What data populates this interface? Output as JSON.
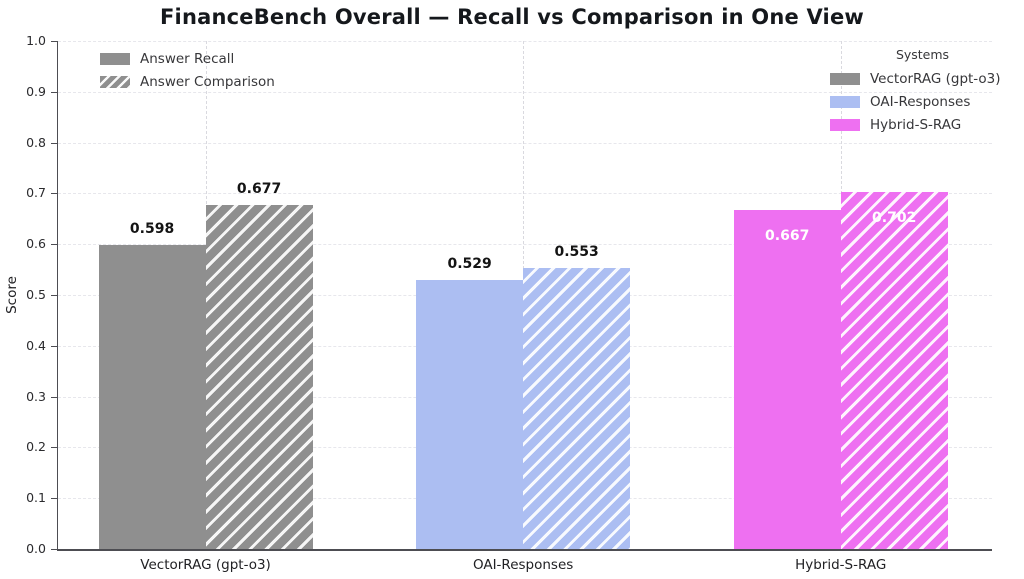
{
  "title": "FinanceBench Overall — Recall vs Comparison in One View",
  "chart_data": {
    "type": "bar",
    "title": "FinanceBench Overall — Recall vs Comparison in One View",
    "xlabel": "",
    "ylabel": "Score",
    "ylim": [
      0.0,
      1.0
    ],
    "yticks": [
      "0.0",
      "0.1",
      "0.2",
      "0.3",
      "0.4",
      "0.5",
      "0.6",
      "0.7",
      "0.8",
      "0.9",
      "1.0"
    ],
    "grid": "horizontal dashed lines every 0.1; vertical dashed line at each group center",
    "categories": [
      "VectorRAG (gpt-o3)",
      "OAI-Responses",
      "Hybrid-S-RAG"
    ],
    "category_colors": [
      "#8f8f8f",
      "#acbef2",
      "#ee70f1"
    ],
    "series": [
      {
        "name": "Answer Recall",
        "hatched": false,
        "values": [
          0.598,
          0.529,
          0.667
        ],
        "value_labels": [
          "0.598",
          "0.529",
          "0.667"
        ]
      },
      {
        "name": "Answer Comparison",
        "hatched": true,
        "values": [
          0.677,
          0.553,
          0.702
        ],
        "value_labels": [
          "0.677",
          "0.553",
          "0.702"
        ]
      }
    ],
    "value_label_placement_per_category": [
      "above",
      "above",
      "inside"
    ],
    "value_label_colors": {
      "above": "#141414",
      "inside": "#ffffff"
    },
    "legend_patterns": {
      "position": "upper left",
      "entries": [
        {
          "label": "Answer Recall",
          "color": "#8f8f8f",
          "hatched": false
        },
        {
          "label": "Answer Comparison",
          "color": "#8f8f8f",
          "hatched": true
        }
      ]
    },
    "legend_systems": {
      "title": "Systems",
      "position": "upper right",
      "entries": [
        {
          "label": "VectorRAG (gpt-o3)",
          "color": "#8f8f8f",
          "hatched": false
        },
        {
          "label": "OAI-Responses",
          "color": "#acbef2",
          "hatched": false
        },
        {
          "label": "Hybrid-S-RAG",
          "color": "#ee70f1",
          "hatched": false
        }
      ]
    }
  }
}
